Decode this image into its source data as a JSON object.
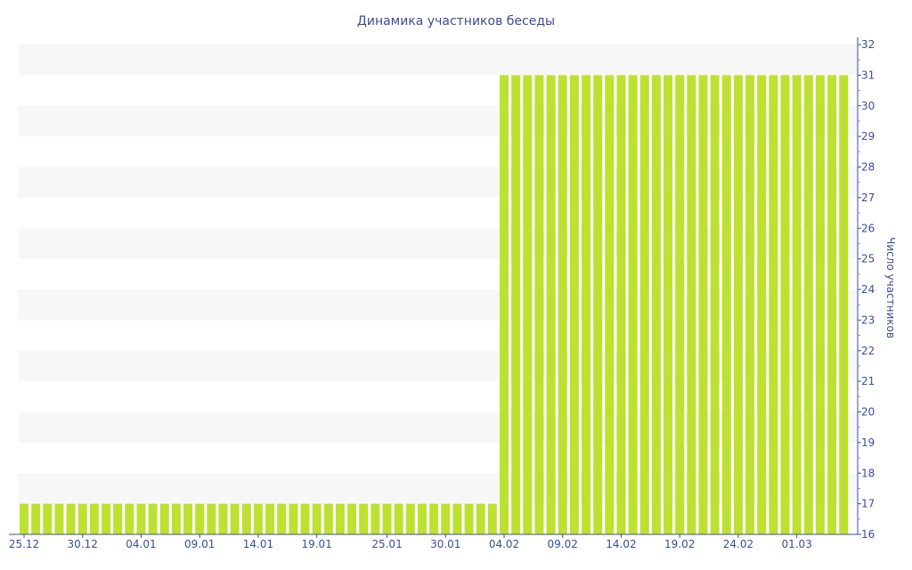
{
  "chart_data": {
    "type": "bar",
    "title": "Динамика участников беседы",
    "ylabel": "Число участников",
    "xlabel": "",
    "ylim": [
      16,
      32
    ],
    "yaxis_position": "right",
    "grid": "alternating horizontal bands",
    "bar_color": "#bde130",
    "text_color": "#3e4c9a",
    "band_color": "#f7f7f7",
    "x_tick_labels": [
      "25.12",
      "30.12",
      "04.01",
      "09.01",
      "14.01",
      "19.01",
      "25.01",
      "30.01",
      "04.02",
      "09.02",
      "14.02",
      "19.02",
      "24.02",
      "01.03"
    ],
    "y_tick_labels": [
      16,
      17,
      18,
      19,
      20,
      21,
      22,
      23,
      24,
      25,
      26,
      27,
      28,
      29,
      30,
      31,
      32
    ],
    "categories": [
      "25.12",
      "26.12",
      "27.12",
      "28.12",
      "29.12",
      "30.12",
      "31.12",
      "01.01",
      "02.01",
      "03.01",
      "04.01",
      "05.01",
      "06.01",
      "07.01",
      "08.01",
      "09.01",
      "10.01",
      "11.01",
      "12.01",
      "13.01",
      "14.01",
      "15.01",
      "16.01",
      "17.01",
      "18.01",
      "19.01",
      "20.01",
      "21.01",
      "22.01",
      "23.01",
      "24.01",
      "25.01",
      "26.01",
      "27.01",
      "28.01",
      "29.01",
      "30.01",
      "31.01",
      "01.02",
      "02.02",
      "03.02",
      "04.02",
      "05.02",
      "06.02",
      "07.02",
      "08.02",
      "09.02",
      "10.02",
      "11.02",
      "12.02",
      "13.02",
      "14.02",
      "15.02",
      "16.02",
      "17.02",
      "18.02",
      "19.02",
      "20.02",
      "21.02",
      "22.02",
      "23.02",
      "24.02",
      "25.02",
      "26.02",
      "27.02",
      "28.02",
      "01.03",
      "02.03",
      "03.03",
      "04.03",
      "05.03"
    ],
    "values": [
      17,
      17,
      17,
      17,
      17,
      17,
      17,
      17,
      17,
      17,
      17,
      17,
      17,
      17,
      17,
      17,
      17,
      17,
      17,
      17,
      17,
      17,
      17,
      17,
      17,
      17,
      17,
      17,
      17,
      17,
      17,
      17,
      17,
      17,
      17,
      17,
      17,
      17,
      17,
      17,
      17,
      31,
      31,
      31,
      31,
      31,
      31,
      31,
      31,
      31,
      31,
      31,
      31,
      31,
      31,
      31,
      31,
      31,
      31,
      31,
      31,
      31,
      31,
      31,
      31,
      31,
      31,
      31,
      31,
      31,
      31
    ]
  }
}
